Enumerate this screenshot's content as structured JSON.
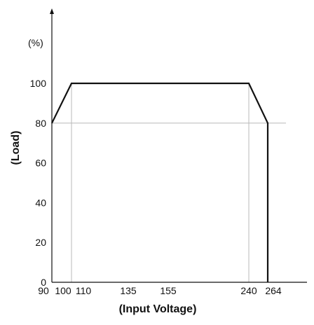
{
  "chart_data": {
    "type": "line",
    "title": "",
    "xlabel": "(Input Voltage)",
    "ylabel": "(Load)",
    "y_unit": "(%)",
    "xlim": [
      90,
      264
    ],
    "ylim": [
      0,
      100
    ],
    "x_ticks": [
      {
        "value": 90,
        "label": "90"
      },
      {
        "value": 100,
        "label": "100"
      },
      {
        "value": 110,
        "label": "110"
      },
      {
        "value": 135,
        "label": "135"
      },
      {
        "value": 155,
        "label": "155"
      },
      {
        "value": 240,
        "label": "240"
      },
      {
        "value": 264,
        "label": "264"
      }
    ],
    "y_ticks": [
      {
        "value": 0,
        "label": "0"
      },
      {
        "value": 20,
        "label": "20"
      },
      {
        "value": 40,
        "label": "40"
      },
      {
        "value": 60,
        "label": "60"
      },
      {
        "value": 80,
        "label": "80"
      },
      {
        "value": 100,
        "label": "100"
      }
    ],
    "grid": "partial guide lines at 80% load and at 100 V / 240 V",
    "reference_lines": [
      {
        "axis": "y",
        "value": 80
      },
      {
        "axis": "x",
        "value": 100
      },
      {
        "axis": "x",
        "value": 240
      }
    ],
    "series": [
      {
        "color": "#111111",
        "points": [
          {
            "x": 90,
            "y": 80
          },
          {
            "x": 100,
            "y": 100
          },
          {
            "x": 240,
            "y": 100
          },
          {
            "x": 254,
            "y": 80
          },
          {
            "x": 254,
            "y": 0
          }
        ]
      }
    ],
    "colors": {
      "curve": "#111111",
      "axis": "#111111",
      "guide": "#b8b8b8"
    }
  }
}
